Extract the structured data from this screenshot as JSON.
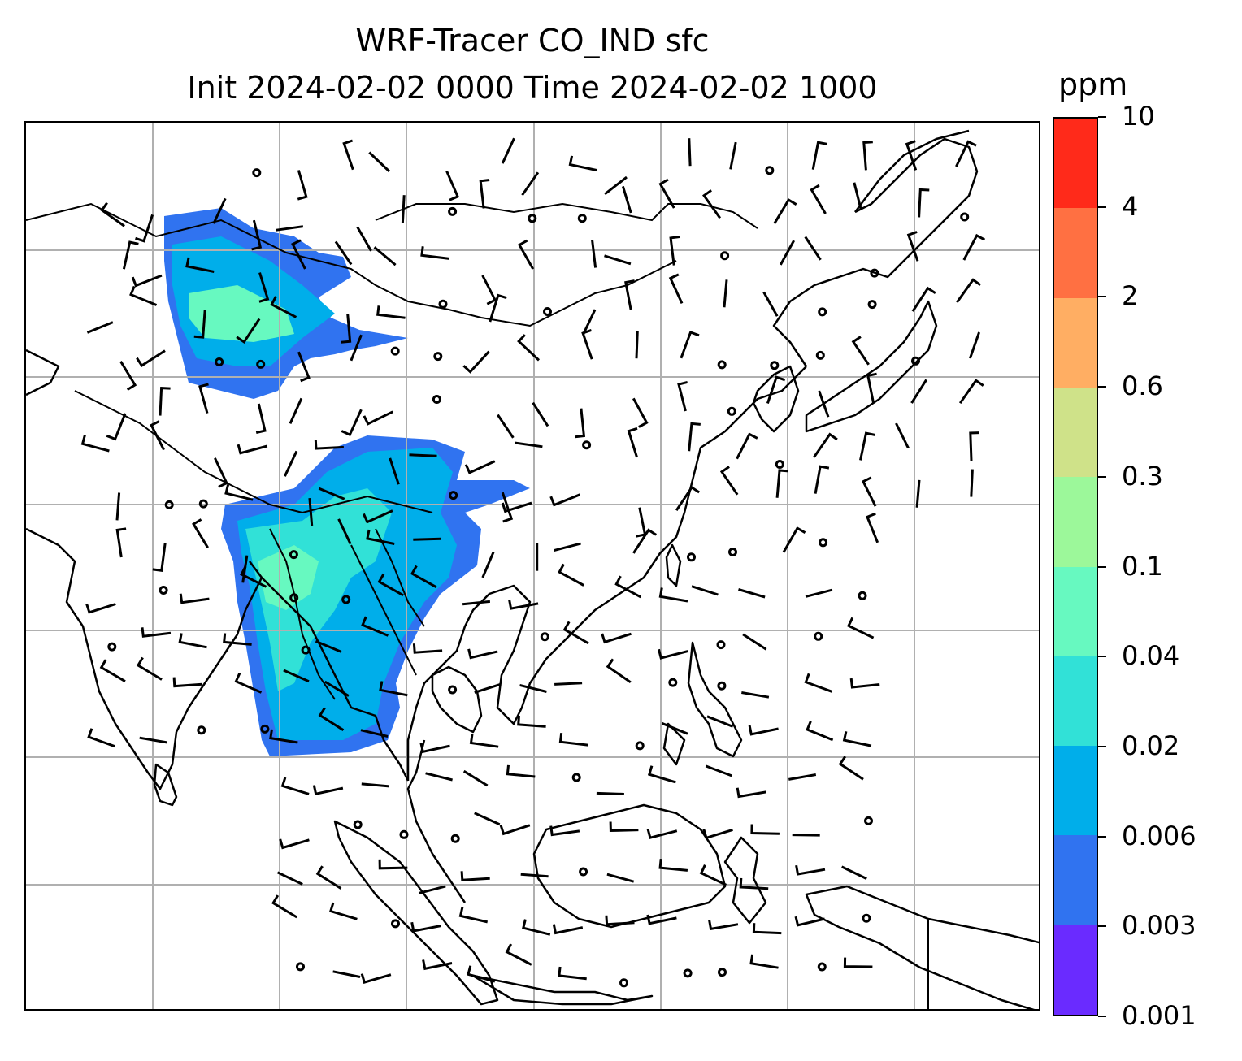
{
  "title": {
    "line1": "WRF-Tracer CO_IND sfc",
    "line2": "Init 2024-02-02 0000 Time 2024-02-02 1000"
  },
  "colorbar": {
    "unit": "ppm",
    "levels": [
      "0.001",
      "0.003",
      "0.006",
      "0.02",
      "0.04",
      "0.1",
      "0.3",
      "0.6",
      "2",
      "4",
      "10"
    ],
    "colors": [
      "#6a2bff",
      "#3073f0",
      "#00aeea",
      "#31e1d7",
      "#67f9c0",
      "#9cf89a",
      "#cfe289",
      "#ffae63",
      "#ff7042",
      "#ff2a1a"
    ]
  },
  "map": {
    "gridlines": true,
    "gridline_color": "#b0b0b0",
    "coastline_color": "#000000",
    "features": [
      "coastlines",
      "country-borders",
      "wind-barbs",
      "calm-wind-circles",
      "tracer-concentration-fill"
    ]
  }
}
